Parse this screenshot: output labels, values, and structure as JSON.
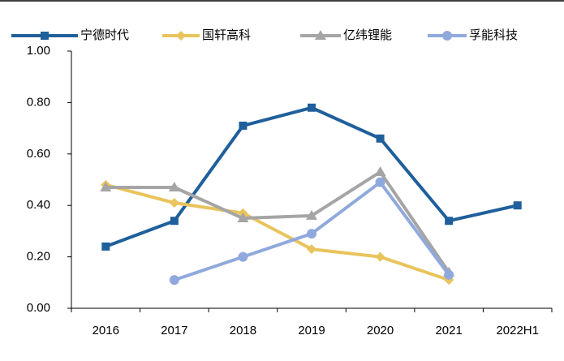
{
  "chart_data": {
    "type": "line",
    "categories": [
      "2016",
      "2017",
      "2018",
      "2019",
      "2020",
      "2021",
      "2022H1"
    ],
    "series": [
      {
        "name": "宁德时代",
        "color": "#1f5f9b",
        "marker": "square",
        "values": [
          0.24,
          0.34,
          0.71,
          0.78,
          0.66,
          0.34,
          0.4
        ]
      },
      {
        "name": "国轩高科",
        "color": "#e9c45c",
        "marker": "diamond",
        "values": [
          0.48,
          0.41,
          0.37,
          0.23,
          0.2,
          0.11,
          null
        ]
      },
      {
        "name": "亿纬锂能",
        "color": "#a5a5a5",
        "marker": "triangle",
        "values": [
          0.47,
          0.47,
          0.35,
          0.36,
          0.53,
          0.14,
          null
        ]
      },
      {
        "name": "孚能科技",
        "color": "#90a9dd",
        "marker": "circle",
        "values": [
          null,
          0.11,
          0.2,
          0.29,
          0.49,
          0.13,
          null
        ]
      }
    ],
    "ylim": [
      0,
      1
    ],
    "yticks": [
      {
        "value": 0,
        "label": "0.00"
      },
      {
        "value": 0.2,
        "label": "0.20"
      },
      {
        "value": 0.4,
        "label": "0.40"
      },
      {
        "value": 0.6,
        "label": "0.60"
      },
      {
        "value": 0.8,
        "label": "0.80"
      },
      {
        "value": 1,
        "label": "1.00"
      }
    ],
    "legend": "top"
  }
}
